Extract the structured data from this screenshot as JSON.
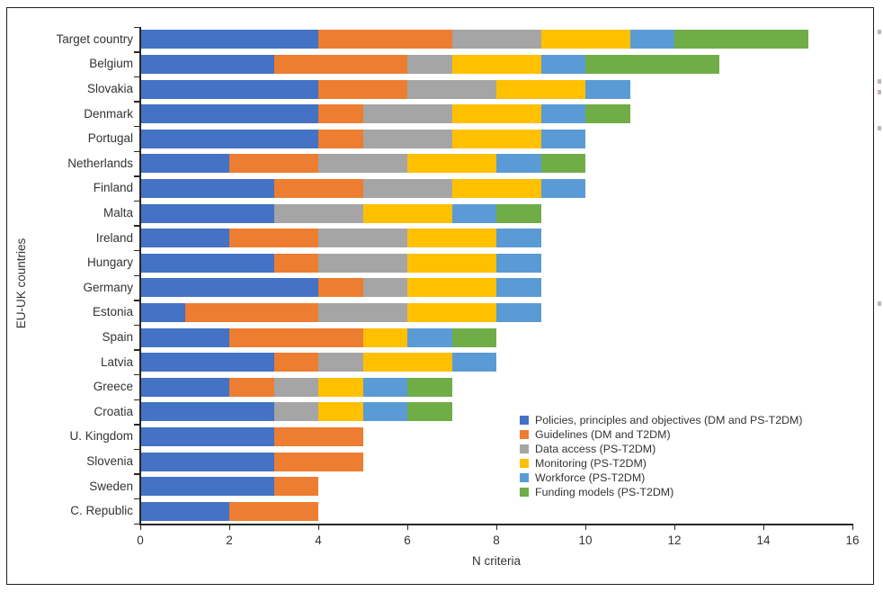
{
  "chart_data": {
    "type": "bar",
    "orientation": "horizontal",
    "stacked": true,
    "title": "",
    "xlabel": "N criteria",
    "ylabel": "EU-UK countries",
    "xlim": [
      0,
      16
    ],
    "xticks": [
      0,
      2,
      4,
      6,
      8,
      10,
      12,
      14,
      16
    ],
    "grid": false,
    "legend_position": "inside-lower-right",
    "categories": [
      "Target country",
      "Belgium",
      "Slovakia",
      "Denmark",
      "Portugal",
      "Netherlands",
      "Finland",
      "Malta",
      "Ireland",
      "Hungary",
      "Germany",
      "Estonia",
      "Spain",
      "Latvia",
      "Greece",
      "Croatia",
      "U. Kingdom",
      "Slovenia",
      "Sweden",
      "C. Republic"
    ],
    "series": [
      {
        "name": "Policies, principles and objectives (DM and PS-T2DM)",
        "color": "#4472C4",
        "values": [
          4,
          3,
          4,
          4,
          4,
          2,
          3,
          3,
          2,
          3,
          4,
          1,
          2,
          3,
          2,
          3,
          3,
          3,
          3,
          2
        ]
      },
      {
        "name": "Guidelines (DM and T2DM)",
        "color": "#ED7D31",
        "values": [
          3,
          3,
          2,
          1,
          1,
          2,
          2,
          0,
          2,
          1,
          1,
          3,
          3,
          1,
          1,
          0,
          2,
          2,
          1,
          2
        ]
      },
      {
        "name": "Data access (PS-T2DM)",
        "color": "#A5A5A5",
        "values": [
          2,
          1,
          2,
          2,
          2,
          2,
          2,
          2,
          2,
          2,
          1,
          2,
          0,
          1,
          1,
          1,
          0,
          0,
          0,
          0
        ]
      },
      {
        "name": "Monitoring (PS-T2DM)",
        "color": "#FFC000",
        "values": [
          2,
          2,
          2,
          2,
          2,
          2,
          2,
          2,
          2,
          2,
          2,
          2,
          1,
          2,
          1,
          1,
          0,
          0,
          0,
          0
        ]
      },
      {
        "name": "Workforce (PS-T2DM)",
        "color": "#5B9BD5",
        "values": [
          1,
          1,
          1,
          1,
          1,
          1,
          1,
          1,
          1,
          1,
          1,
          1,
          1,
          1,
          1,
          1,
          0,
          0,
          0,
          0
        ]
      },
      {
        "name": "Funding models (PS-T2DM)",
        "color": "#70AD47",
        "values": [
          3,
          3,
          0,
          1,
          0,
          1,
          0,
          1,
          0,
          0,
          0,
          0,
          1,
          0,
          1,
          1,
          0,
          0,
          0,
          0
        ]
      }
    ],
    "totals": [
      15,
      13,
      11,
      11,
      10,
      10,
      10,
      9,
      9,
      9,
      9,
      9,
      8,
      8,
      7,
      7,
      5,
      5,
      4,
      4
    ]
  }
}
